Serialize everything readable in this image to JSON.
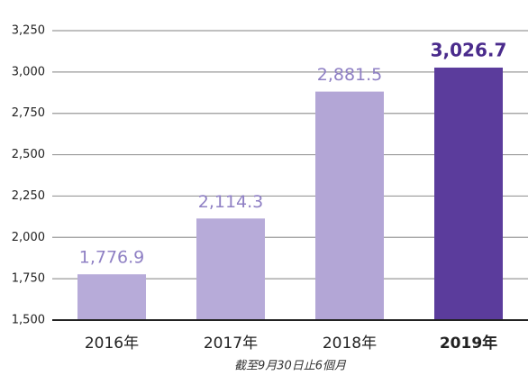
{
  "chart_data": {
    "type": "bar",
    "categories": [
      "2016年",
      "2017年",
      "2018年",
      "2019年"
    ],
    "values": [
      1776.9,
      2114.3,
      2881.5,
      3026.7
    ],
    "value_labels": [
      "1,776.9",
      "2,114.3",
      "2,881.5",
      "3,026.7"
    ],
    "colors": [
      "#b7abd9",
      "#b7abd9",
      "#b3a6d6",
      "#5b3c9c"
    ],
    "highlight_index": 3,
    "note": "截至9月30日止6個月",
    "ylim": [
      1500,
      3250
    ],
    "yticks": [
      {
        "value": 1500,
        "label": "1,500"
      },
      {
        "value": 1750,
        "label": "1,750"
      },
      {
        "value": 2000,
        "label": "2,000"
      },
      {
        "value": 2250,
        "label": "2,250"
      },
      {
        "value": 2500,
        "label": "2,500"
      },
      {
        "value": 2750,
        "label": "2,750"
      },
      {
        "value": 3000,
        "label": "3,000"
      },
      {
        "value": 3250,
        "label": "3,250"
      }
    ],
    "grid": true
  }
}
